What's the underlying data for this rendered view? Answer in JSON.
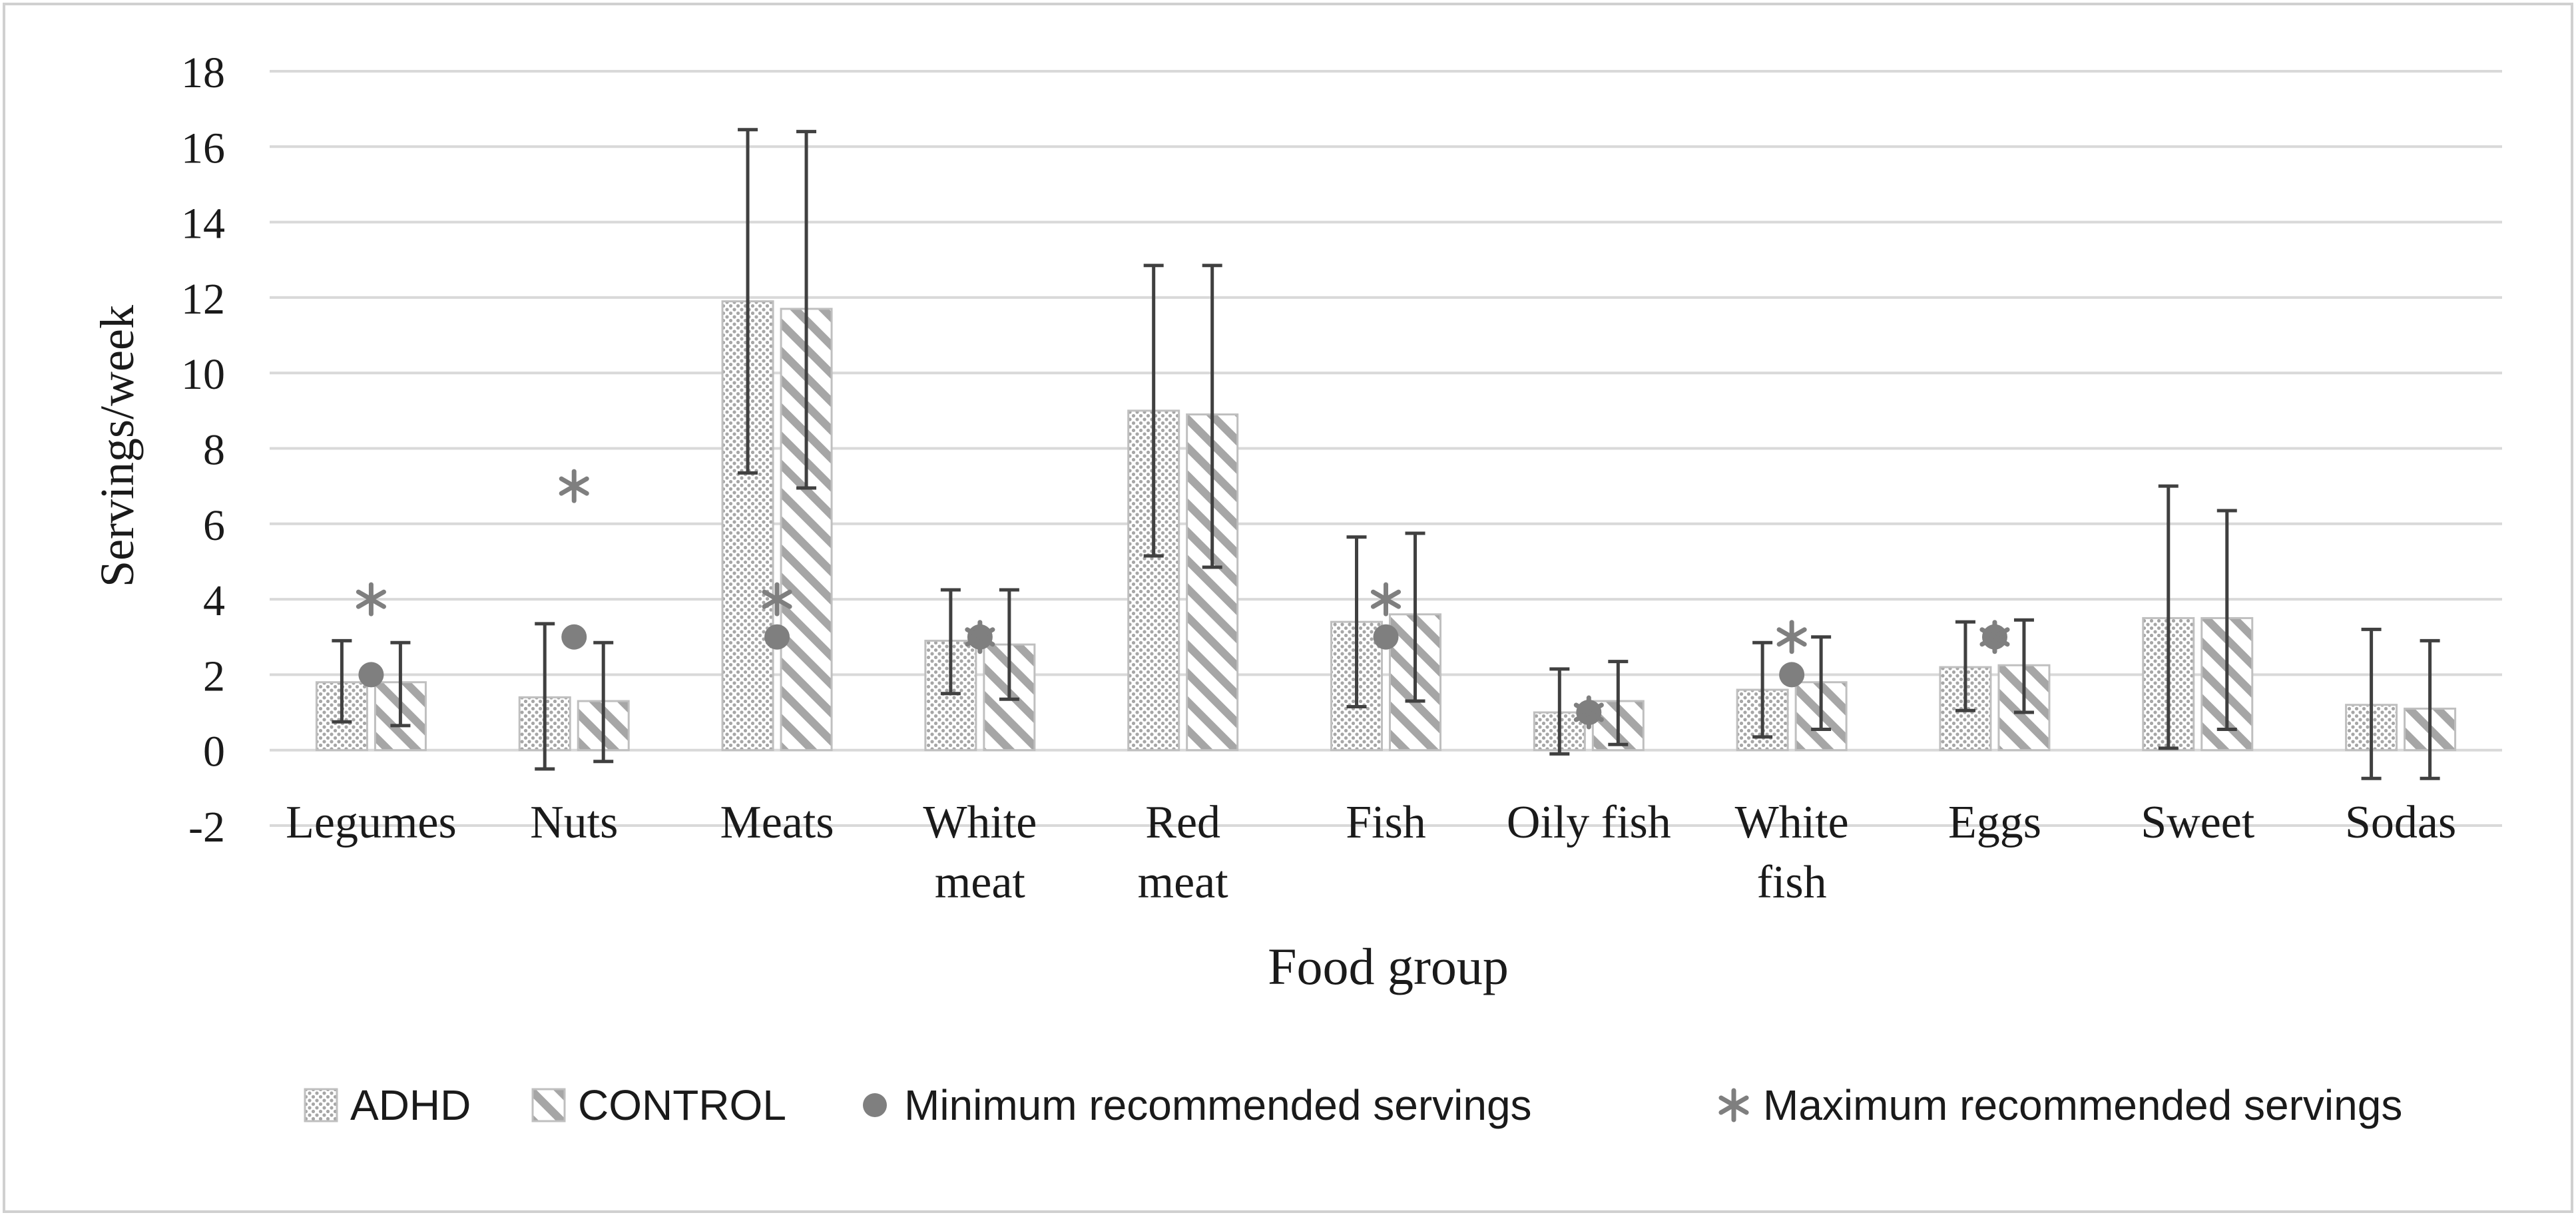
{
  "chart_data": {
    "type": "bar",
    "title": "",
    "xlabel": "Food group",
    "ylabel": "Servings/week",
    "ylim": [
      -2,
      18
    ],
    "yticks": [
      -2,
      0,
      2,
      4,
      6,
      8,
      10,
      12,
      14,
      16,
      18
    ],
    "grid": true,
    "legend_position": "bottom",
    "categories": [
      [
        "Legumes"
      ],
      [
        "Nuts"
      ],
      [
        "Meats"
      ],
      [
        "White",
        "meat"
      ],
      [
        "Red",
        "meat"
      ],
      [
        "Fish"
      ],
      [
        "Oily fish"
      ],
      [
        "White",
        "fish"
      ],
      [
        "Eggs"
      ],
      [
        "Sweet"
      ],
      [
        "Sodas"
      ]
    ],
    "series": [
      {
        "name": "ADHD",
        "pattern": "dots",
        "values": [
          1.8,
          1.4,
          11.9,
          2.9,
          9.0,
          3.4,
          1.0,
          1.6,
          2.2,
          3.5,
          1.2
        ],
        "error_low": [
          0.75,
          -0.5,
          7.35,
          1.5,
          5.15,
          1.15,
          -0.1,
          0.35,
          1.05,
          0.05,
          -0.75
        ],
        "error_high": [
          2.9,
          3.35,
          16.45,
          4.25,
          12.85,
          5.65,
          2.15,
          2.85,
          3.4,
          7.0,
          3.2
        ]
      },
      {
        "name": "CONTROL",
        "pattern": "stripes",
        "values": [
          1.8,
          1.3,
          11.7,
          2.8,
          8.9,
          3.6,
          1.3,
          1.8,
          2.25,
          3.5,
          1.1
        ],
        "error_low": [
          0.65,
          -0.3,
          6.95,
          1.35,
          4.85,
          1.3,
          0.15,
          0.55,
          1.0,
          0.55,
          -0.75
        ],
        "error_high": [
          2.85,
          2.85,
          16.4,
          4.25,
          12.85,
          5.75,
          2.35,
          3.0,
          3.45,
          6.35,
          2.9
        ]
      }
    ],
    "markers": [
      {
        "name": "Minimum recommended servings",
        "symbol": "circle",
        "values": [
          2,
          3,
          3,
          3,
          null,
          3,
          1,
          2,
          3,
          null,
          null
        ]
      },
      {
        "name": "Maximum recommended servings",
        "symbol": "asterisk",
        "values": [
          4,
          7,
          4,
          3,
          null,
          4,
          1,
          3,
          3,
          null,
          null
        ]
      }
    ],
    "legend": [
      "ADHD",
      "CONTROL",
      "Minimum recommended servings",
      "Maximum recommended servings"
    ]
  },
  "colors": {
    "bar_fill": "#ffffff",
    "pattern": "#a6a6a6",
    "error_bar": "#404040",
    "gridline": "#d9d9d9",
    "marker": "#7f7f7f",
    "text": "#1a1a1a",
    "frame": "#d0d0d0"
  }
}
